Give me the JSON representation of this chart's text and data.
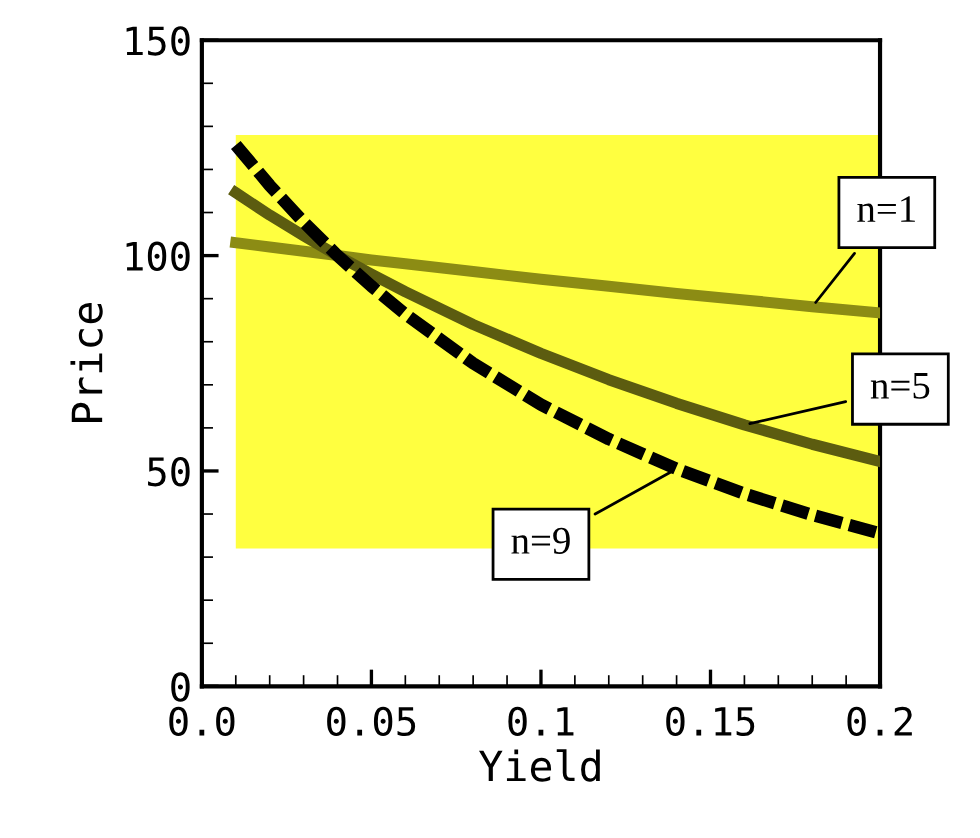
{
  "chart_data": {
    "type": "line",
    "xlabel": "Yield",
    "ylabel": "Price",
    "x": [
      0.01,
      0.02,
      0.03,
      0.04,
      0.05,
      0.06,
      0.08,
      0.1,
      0.12,
      0.14,
      0.16,
      0.18,
      0.2
    ],
    "series": [
      {
        "color": "#8c8c14",
        "line_style": "solid",
        "values": [
          103.0,
          102.0,
          101.0,
          100.0,
          99.0,
          98.1,
          96.3,
          94.5,
          92.9,
          91.2,
          89.7,
          88.1,
          86.7
        ]
      },
      {
        "color": "#5c5c10",
        "line_style": "solid",
        "values": [
          114.6,
          109.4,
          104.6,
          100.0,
          95.7,
          91.6,
          84.0,
          77.3,
          71.2,
          65.7,
          60.7,
          56.2,
          52.2
        ]
      },
      {
        "color": "#000000",
        "line_style": "dashed",
        "values": [
          125.7,
          116.3,
          107.8,
          100.0,
          92.9,
          86.4,
          75.0,
          65.4,
          57.4,
          50.5,
          44.7,
          39.8,
          35.5
        ]
      }
    ],
    "bands": [
      {
        "axis": "y",
        "from": 32,
        "to": 128,
        "color": "#ffff40"
      }
    ],
    "annotations": [
      {
        "text": "n=1",
        "x": 0.18,
        "y": 88.1
      },
      {
        "text": "n=5",
        "x": 0.16,
        "y": 60.7
      },
      {
        "text": "n=9",
        "x": 0.14,
        "y": 50.5
      }
    ],
    "xlim": [
      0,
      0.2
    ],
    "ylim": [
      0,
      150
    ],
    "xticks": [
      {
        "value": 0,
        "label": "0.0"
      },
      0.05,
      0.1,
      0.15,
      0.2
    ],
    "yticks": [
      0,
      50,
      100,
      150
    ],
    "grid": false,
    "legend": false,
    "marker": "none"
  }
}
